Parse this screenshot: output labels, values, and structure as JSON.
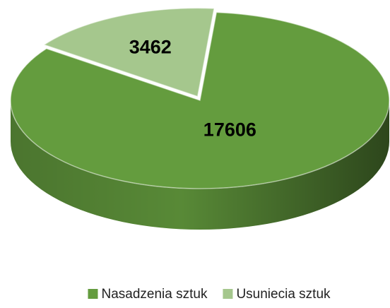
{
  "chart_data": {
    "type": "pie",
    "categories": [
      "Nasadzenia sztuk",
      "Usuniecia sztuk"
    ],
    "values": [
      17606,
      3462
    ],
    "colors": [
      "#649c3e",
      "#a5c78d"
    ],
    "legend": "bottom"
  }
}
